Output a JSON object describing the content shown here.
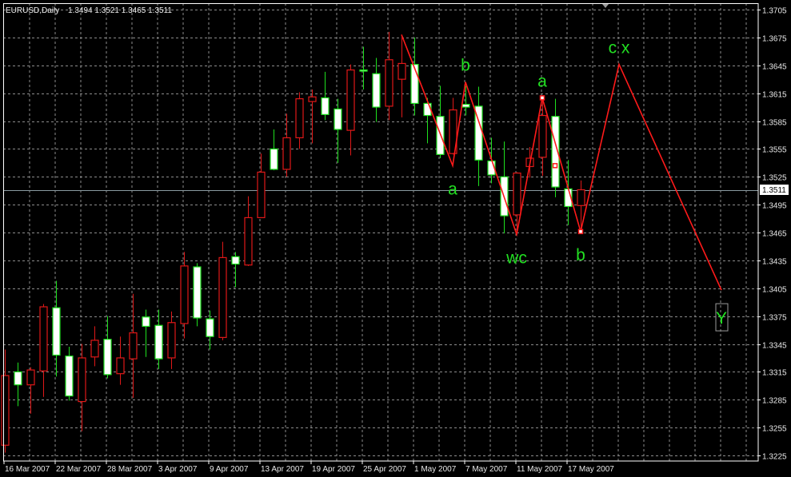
{
  "header": {
    "symbol": "EURUSD,Daily",
    "ohlc": "1.3494 1.3521 1.3465 1.3511"
  },
  "colors": {
    "background": "#000000",
    "grid": "#8c8c8c",
    "axis": "#ffffff",
    "bull_candle": "#e01818",
    "bull_fill": "#000000",
    "bear_candle": "#1ee01e",
    "bear_fill": "#ffffff",
    "zigzag": "#ff1a1a",
    "wave_labels": "#22e022",
    "price_line": "#8a9aa0"
  },
  "chart_data": {
    "type": "candlestick",
    "title": "EURUSD,Daily",
    "grid": true,
    "ylim": [
      1.3225,
      1.3705
    ],
    "y_ticks": [
      "1.3705",
      "1.3675",
      "1.3645",
      "1.3615",
      "1.3585",
      "1.3555",
      "1.3525",
      "1.3495",
      "1.3465",
      "1.3435",
      "1.3405",
      "1.3375",
      "1.3345",
      "1.3315",
      "1.3285",
      "1.3255",
      "1.3225"
    ],
    "x_ticks": [
      "16 Mar 2007",
      "22 Mar 2007",
      "28 Mar 2007",
      "3 Apr 2007",
      "9 Apr 2007",
      "13 Apr 2007",
      "19 Apr 2007",
      "25 Apr 2007",
      "1 May 2007",
      "7 May 2007",
      "11 May 2007",
      "17 May 2007"
    ],
    "current_price": "1.3511",
    "candles_columns": [
      "date",
      "open",
      "high",
      "low",
      "close"
    ],
    "candles": [
      [
        "2007-03-16",
        1.3236,
        1.3339,
        1.3228,
        1.3311
      ],
      [
        "2007-03-19",
        1.3315,
        1.3325,
        1.3278,
        1.3301
      ],
      [
        "2007-03-20",
        1.3301,
        1.332,
        1.327,
        1.3317
      ],
      [
        "2007-03-21",
        1.3316,
        1.3388,
        1.3288,
        1.3385
      ],
      [
        "2007-03-22",
        1.3384,
        1.3413,
        1.331,
        1.3333
      ],
      [
        "2007-03-23",
        1.3332,
        1.3342,
        1.3284,
        1.3289
      ],
      [
        "2007-03-26",
        1.3283,
        1.3345,
        1.3251,
        1.333
      ],
      [
        "2007-03-27",
        1.3331,
        1.3364,
        1.3321,
        1.3349
      ],
      [
        "2007-03-28",
        1.335,
        1.3375,
        1.3308,
        1.3312
      ],
      [
        "2007-03-29",
        1.3313,
        1.3353,
        1.3301,
        1.333
      ],
      [
        "2007-03-30",
        1.3329,
        1.3399,
        1.3287,
        1.3357
      ],
      [
        "2007-04-02",
        1.3374,
        1.3382,
        1.3331,
        1.3364
      ],
      [
        "2007-04-03",
        1.3365,
        1.3382,
        1.3318,
        1.3329
      ],
      [
        "2007-04-04",
        1.333,
        1.338,
        1.3318,
        1.3368
      ],
      [
        "2007-04-05",
        1.3367,
        1.3444,
        1.3351,
        1.3429
      ],
      [
        "2007-04-06",
        1.3428,
        1.3432,
        1.3364,
        1.3373
      ],
      [
        "2007-04-09",
        1.3372,
        1.3381,
        1.3339,
        1.3353
      ],
      [
        "2007-04-10",
        1.3352,
        1.3455,
        1.3349,
        1.3438
      ],
      [
        "2007-04-11",
        1.3439,
        1.3444,
        1.3406,
        1.3431
      ],
      [
        "2007-04-12",
        1.343,
        1.3504,
        1.3429,
        1.3481
      ],
      [
        "2007-04-13",
        1.3481,
        1.355,
        1.3481,
        1.353
      ],
      [
        "2007-04-16",
        1.3555,
        1.3576,
        1.3532,
        1.3533
      ],
      [
        "2007-04-17",
        1.3533,
        1.3593,
        1.3525,
        1.3567
      ],
      [
        "2007-04-18",
        1.3567,
        1.3616,
        1.3555,
        1.3609
      ],
      [
        "2007-04-19",
        1.3606,
        1.3619,
        1.3561,
        1.3611
      ],
      [
        "2007-04-20",
        1.361,
        1.3638,
        1.3586,
        1.3592
      ],
      [
        "2007-04-23",
        1.3598,
        1.3609,
        1.354,
        1.3576
      ],
      [
        "2007-04-24",
        1.3575,
        1.3646,
        1.3548,
        1.364
      ],
      [
        "2007-04-25",
        1.364,
        1.3665,
        1.3619,
        1.3639
      ],
      [
        "2007-04-26",
        1.3636,
        1.3653,
        1.3584,
        1.36
      ],
      [
        "2007-04-27",
        1.3601,
        1.3681,
        1.3586,
        1.3651
      ],
      [
        "2007-04-30",
        1.363,
        1.3678,
        1.3589,
        1.3647
      ],
      [
        "2007-05-01",
        1.3646,
        1.3675,
        1.3591,
        1.3604
      ],
      [
        "2007-05-02",
        1.3604,
        1.361,
        1.3561,
        1.3591
      ],
      [
        "2007-05-03",
        1.359,
        1.3623,
        1.3545,
        1.3549
      ],
      [
        "2007-05-04",
        1.355,
        1.361,
        1.3549,
        1.3597
      ],
      [
        "2007-05-07",
        1.3603,
        1.3623,
        1.3591,
        1.36
      ],
      [
        "2007-05-08",
        1.3601,
        1.3622,
        1.3515,
        1.3543
      ],
      [
        "2007-05-09",
        1.3542,
        1.3567,
        1.3518,
        1.3527
      ],
      [
        "2007-05-10",
        1.3525,
        1.3563,
        1.3464,
        1.3483
      ],
      [
        "2007-05-11",
        1.3484,
        1.353,
        1.3463,
        1.3529
      ],
      [
        "2007-05-14",
        1.3536,
        1.3557,
        1.3524,
        1.3545
      ],
      [
        "2007-05-15",
        1.3546,
        1.361,
        1.3526,
        1.3591
      ],
      [
        "2007-05-16",
        1.359,
        1.3609,
        1.3503,
        1.3514
      ],
      [
        "2007-05-17",
        1.3512,
        1.3543,
        1.3473,
        1.3493
      ],
      [
        "2007-05-18",
        1.3494,
        1.3521,
        1.3465,
        1.3511
      ]
    ],
    "zigzag": [
      {
        "date": "2007-04-30",
        "price": 1.3678,
        "label": ""
      },
      {
        "date": "2007-05-04",
        "price": 1.3537,
        "label": "a",
        "side": "below"
      },
      {
        "date": "2007-05-07",
        "price": 1.3627,
        "label": "b",
        "side": "above"
      },
      {
        "date": "2007-05-11",
        "price": 1.3463,
        "label": "wc",
        "side": "below"
      },
      {
        "date": "2007-05-15",
        "price": 1.361,
        "label": "a",
        "side": "above"
      },
      {
        "date": "2007-05-18",
        "price": 1.3466,
        "label": "b",
        "side": "below"
      },
      {
        "date": "2007-05-23",
        "price": 1.3646,
        "label": "c x",
        "side": "above"
      },
      {
        "date": "2007-06-04",
        "price": 1.3403,
        "label": "Y",
        "side": "box"
      }
    ],
    "markers": [
      {
        "date": "2007-05-15",
        "price": 1.361
      },
      {
        "date": "2007-05-16",
        "price": 1.3537
      },
      {
        "date": "2007-05-18",
        "price": 1.3466
      }
    ]
  }
}
